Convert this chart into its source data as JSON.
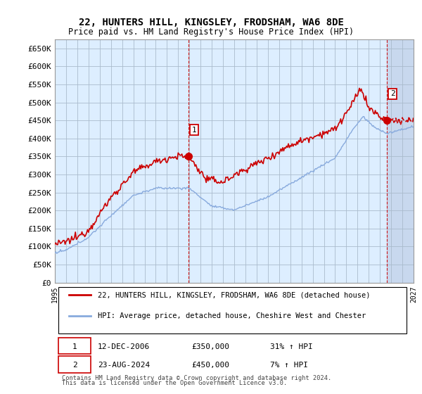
{
  "title": "22, HUNTERS HILL, KINGSLEY, FRODSHAM, WA6 8DE",
  "subtitle": "Price paid vs. HM Land Registry's House Price Index (HPI)",
  "legend_line1": "22, HUNTERS HILL, KINGSLEY, FRODSHAM, WA6 8DE (detached house)",
  "legend_line2": "HPI: Average price, detached house, Cheshire West and Chester",
  "ann1": [
    "1",
    "12-DEC-2006",
    "£350,000",
    "31% ↑ HPI"
  ],
  "ann2": [
    "2",
    "23-AUG-2024",
    "£450,000",
    "7% ↑ HPI"
  ],
  "footnote1": "Contains HM Land Registry data © Crown copyright and database right 2024.",
  "footnote2": "This data is licensed under the Open Government Licence v3.0.",
  "red_color": "#cc0000",
  "blue_color": "#88aadd",
  "bg_color": "#ddeeff",
  "future_bg_color": "#c8d8ee",
  "grid_color": "#aabbcc",
  "ylim_min": 0,
  "ylim_max": 675000,
  "yticks": [
    0,
    50000,
    100000,
    150000,
    200000,
    250000,
    300000,
    350000,
    400000,
    450000,
    500000,
    550000,
    600000,
    650000
  ],
  "xlim_min": 1995,
  "xlim_max": 2027,
  "marker1_year": 2006.92,
  "marker1_val": 350000,
  "marker2_year": 2024.62,
  "marker2_val": 450000,
  "future_start": 2024.62
}
